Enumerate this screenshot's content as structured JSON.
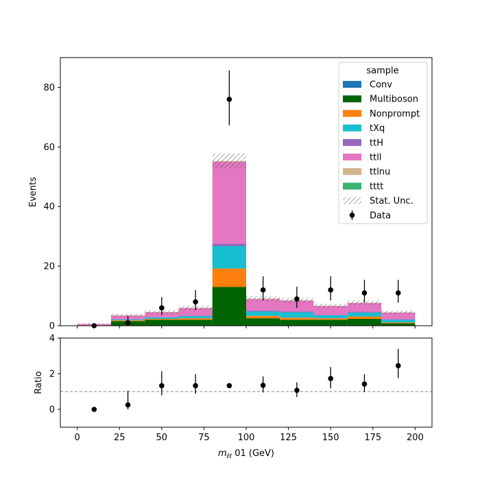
{
  "chart_data": [
    {
      "type": "bar",
      "stacked": true,
      "bin_edges": [
        0,
        20,
        40,
        60,
        80,
        100,
        120,
        140,
        160,
        180,
        200
      ],
      "xlim": [
        -10,
        210
      ],
      "ylim": [
        0,
        90
      ],
      "yticks": [
        0,
        20,
        40,
        60,
        80
      ],
      "xticks": [
        0,
        25,
        50,
        75,
        100,
        125,
        150,
        175,
        200
      ],
      "ylabel": "Events",
      "legend": {
        "title": "sample",
        "position": "top-right"
      },
      "series": [
        {
          "name": "Conv",
          "color": "#1f77b4",
          "values": [
            0,
            0,
            0,
            0,
            0,
            0,
            0,
            0,
            0,
            0
          ]
        },
        {
          "name": "Multiboson",
          "color": "#006400",
          "values": [
            0.1,
            1.5,
            2.0,
            2.0,
            13.0,
            2.5,
            2.0,
            2.0,
            2.3,
            0.8
          ]
        },
        {
          "name": "Nonprompt",
          "color": "#ff7f0e",
          "values": [
            0,
            0.3,
            0.3,
            0.5,
            6.2,
            0.8,
            0.7,
            0.5,
            0.8,
            0.3
          ]
        },
        {
          "name": "tXq",
          "color": "#17becf",
          "values": [
            0,
            0.3,
            0.5,
            0.7,
            7.5,
            1.5,
            1.8,
            1.0,
            1.3,
            0.9
          ]
        },
        {
          "name": "ttH",
          "color": "#9467bd",
          "values": [
            0,
            0.1,
            0.1,
            0.2,
            0.8,
            0.3,
            0.3,
            0.2,
            0.3,
            0.2
          ]
        },
        {
          "name": "ttll",
          "color": "#e377c2",
          "values": [
            0.5,
            1.2,
            1.6,
            2.5,
            27.5,
            3.8,
            3.6,
            2.9,
            2.9,
            2.2
          ]
        },
        {
          "name": "ttlnu",
          "color": "#d2b48c",
          "values": [
            0,
            0.1,
            0.1,
            0.1,
            0.3,
            0.2,
            0.1,
            0.1,
            0.1,
            0.1
          ]
        },
        {
          "name": "tttt",
          "color": "#3cb371",
          "values": [
            0,
            0,
            0,
            0,
            0,
            0,
            0,
            0,
            0,
            0
          ]
        }
      ],
      "stat_unc": {
        "name": "Stat. Unc.",
        "values": [
          0.15,
          0.5,
          0.6,
          0.7,
          2.5,
          0.8,
          0.8,
          0.7,
          0.8,
          0.6
        ]
      },
      "data": {
        "name": "Data",
        "x": [
          10,
          30,
          50,
          70,
          90,
          110,
          130,
          150,
          170,
          190
        ],
        "y": [
          0,
          1,
          6,
          8,
          76,
          12,
          9,
          12,
          11,
          11
        ],
        "err_lo": [
          0,
          1,
          2.4,
          2.8,
          8.7,
          3.5,
          3.0,
          3.5,
          3.3,
          3.3
        ],
        "err_hi": [
          0,
          2.3,
          3.6,
          4.0,
          9.7,
          4.6,
          4.1,
          4.6,
          4.4,
          4.4
        ]
      }
    },
    {
      "type": "scatter",
      "xlim": [
        -10,
        210
      ],
      "ylim": [
        -1,
        4
      ],
      "yticks": [
        0,
        2,
        4
      ],
      "xticks": [
        0,
        25,
        50,
        75,
        100,
        125,
        150,
        175,
        200
      ],
      "xticklabels": [
        "0",
        "25",
        "50",
        "75",
        "100",
        "125",
        "150",
        "175",
        "200"
      ],
      "ylabel": "Ratio",
      "xlabel_var": "m",
      "xlabel_sub": "ℓℓ",
      "xlabel_rest": " 01 (GeV)",
      "reference_line": 1,
      "x": [
        10,
        30,
        50,
        70,
        90,
        110,
        130,
        150,
        170,
        190
      ],
      "y": [
        0,
        0.25,
        1.33,
        1.33,
        1.33,
        1.35,
        1.07,
        1.73,
        1.42,
        2.45
      ],
      "err_lo": [
        0,
        0.25,
        0.55,
        0.45,
        0.12,
        0.4,
        0.38,
        0.55,
        0.45,
        0.7
      ],
      "err_hi": [
        0,
        0.8,
        0.8,
        0.65,
        0.12,
        0.5,
        0.45,
        0.65,
        0.55,
        0.95
      ]
    }
  ]
}
